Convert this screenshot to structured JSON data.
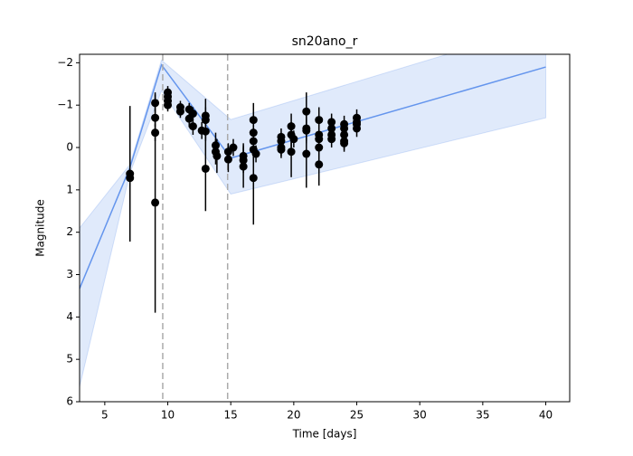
{
  "chart_data": {
    "type": "errorbar",
    "title": "sn20ano_r",
    "x_label": "Time [days]",
    "y_label": "Magnitude",
    "x": [
      7,
      7,
      9,
      9,
      9,
      9,
      10,
      10,
      10,
      10,
      11,
      11,
      11.7,
      11.7,
      12,
      12,
      12.7,
      13,
      13,
      13,
      13,
      13.8,
      13.8,
      13.9,
      14.8,
      14.8,
      15.2,
      16,
      16,
      16,
      16.8,
      16.8,
      16.8,
      16.8,
      16.8,
      17,
      19,
      19,
      19,
      19,
      19.8,
      19.8,
      19.8,
      20,
      21,
      21,
      21,
      21,
      22,
      22,
      22,
      22,
      22,
      23,
      23,
      23,
      23,
      24,
      24,
      24,
      24,
      24,
      25,
      25,
      25,
      25
    ],
    "values": [
      0.62,
      0.72,
      -1.05,
      -0.7,
      -0.35,
      1.3,
      -1.3,
      -1.2,
      -1.1,
      -1.0,
      -0.95,
      -0.85,
      -0.9,
      -0.68,
      -0.8,
      -0.5,
      -0.4,
      -0.75,
      -0.65,
      -0.38,
      0.5,
      -0.05,
      0.1,
      0.2,
      0.1,
      0.28,
      0.0,
      0.2,
      0.3,
      0.45,
      0.72,
      -0.65,
      -0.35,
      -0.15,
      0.05,
      0.15,
      -0.25,
      -0.15,
      0.0,
      0.05,
      -0.5,
      -0.3,
      0.1,
      -0.2,
      -0.85,
      -0.45,
      -0.4,
      0.15,
      -0.65,
      -0.3,
      -0.2,
      0.0,
      0.4,
      -0.6,
      -0.45,
      -0.3,
      -0.2,
      -0.55,
      -0.45,
      -0.3,
      -0.15,
      -0.1,
      -0.7,
      -0.6,
      -0.55,
      -0.45
    ],
    "errors": [
      1.6,
      0.2,
      0.2,
      0.2,
      0.2,
      2.6,
      0.15,
      0.15,
      0.15,
      0.15,
      0.15,
      0.15,
      0.15,
      0.2,
      0.15,
      0.2,
      0.2,
      0.2,
      0.5,
      0.2,
      1.0,
      0.3,
      0.3,
      0.4,
      0.2,
      0.3,
      0.2,
      0.3,
      0.3,
      0.5,
      1.1,
      0.4,
      0.3,
      0.3,
      0.3,
      0.2,
      0.2,
      0.2,
      0.2,
      0.2,
      0.3,
      0.3,
      0.6,
      0.2,
      0.45,
      0.3,
      0.3,
      0.8,
      0.3,
      0.3,
      0.3,
      0.3,
      0.5,
      0.2,
      0.2,
      0.2,
      0.2,
      0.2,
      0.2,
      0.2,
      0.2,
      0.2,
      0.2,
      0.2,
      0.2,
      0.2
    ],
    "color": "#000000",
    "model_x": [
      3,
      7,
      9.5,
      15,
      40
    ],
    "model_values": [
      3.33,
      0.47,
      -1.95,
      0.25,
      -1.9
    ],
    "band_upper": [
      1.9,
      0.4,
      -2.06,
      -0.66,
      -2.9
    ],
    "band_lower": [
      5.65,
      0.6,
      -1.34,
      1.1,
      -0.7
    ],
    "model_color": "#6495ed",
    "vlines": [
      9.6,
      14.75
    ],
    "vline_color": "#aaaaaa",
    "xlim": [
      3,
      41.9
    ],
    "ylim": [
      6,
      -2.2
    ],
    "y_inverted": true,
    "xticks": [
      5,
      10,
      15,
      20,
      25,
      30,
      35,
      40
    ],
    "yticks": [
      {
        "value": -2,
        "label": "−2"
      },
      {
        "value": -1,
        "label": "−1"
      },
      0,
      1,
      2,
      3,
      4,
      5,
      6
    ]
  }
}
